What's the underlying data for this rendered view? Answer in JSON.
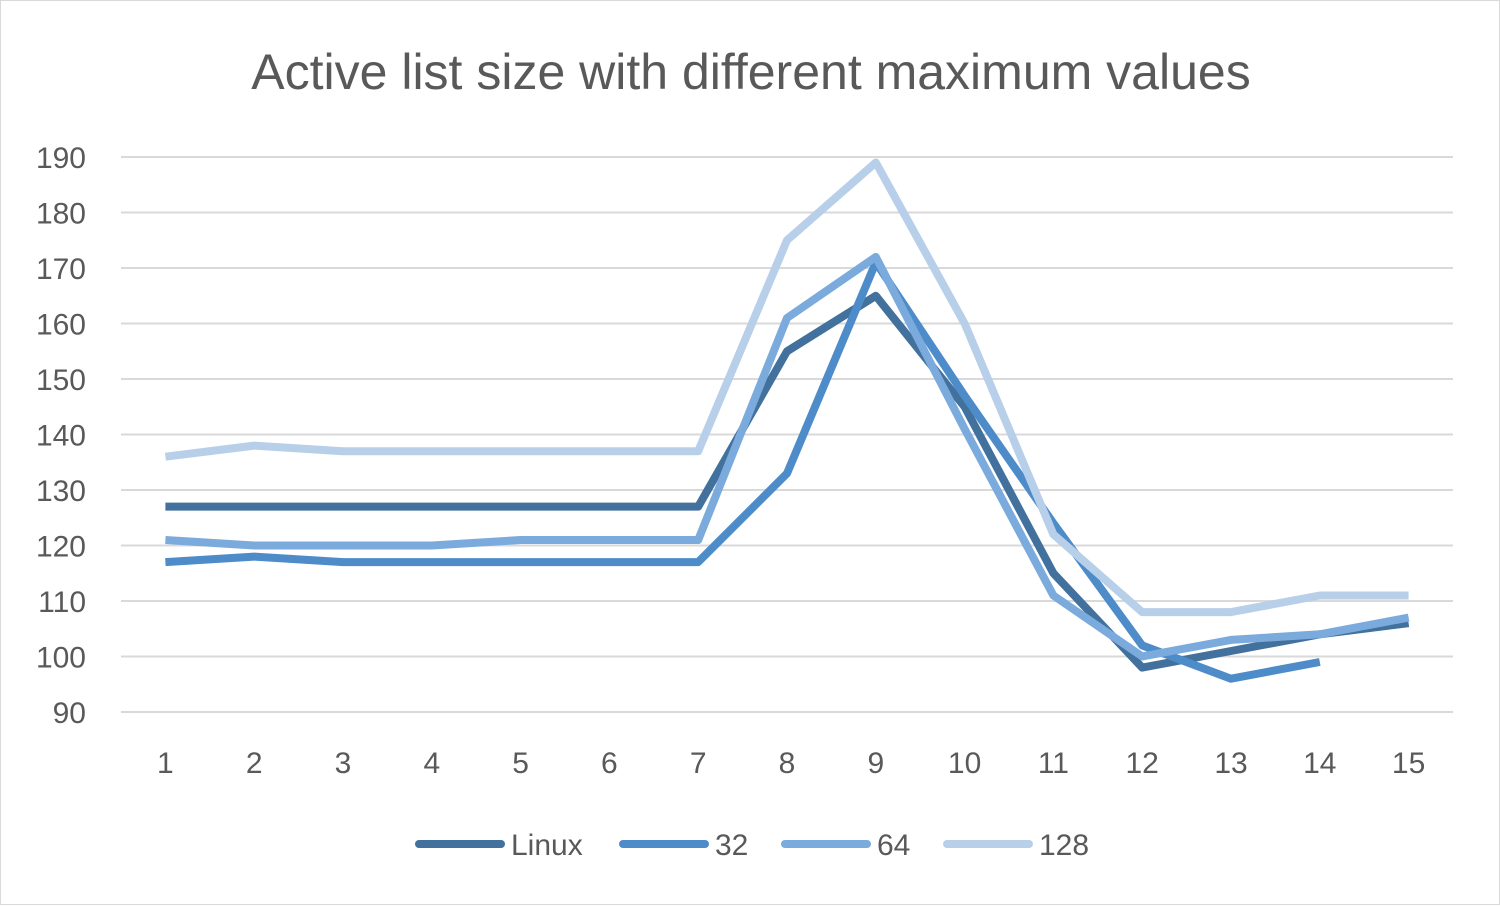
{
  "chart_data": {
    "type": "line",
    "title": "Active list size with different maximum values",
    "xlabel": "",
    "ylabel": "",
    "categories": [
      "1",
      "2",
      "3",
      "4",
      "5",
      "6",
      "7",
      "8",
      "9",
      "10",
      "11",
      "12",
      "13",
      "14",
      "15"
    ],
    "ylim": [
      90,
      190
    ],
    "yticks": [
      "90",
      "100",
      "110",
      "120",
      "130",
      "140",
      "150",
      "160",
      "170",
      "180",
      "190"
    ],
    "grid": true,
    "legend_position": "bottom",
    "series": [
      {
        "name": "Linux",
        "color": "#41719c",
        "values": [
          127,
          127,
          127,
          127,
          127,
          127,
          127,
          155,
          165,
          145,
          115,
          98,
          101,
          104,
          106
        ]
      },
      {
        "name": "32",
        "color": "#4d8cc8",
        "values": [
          117,
          118,
          117,
          117,
          117,
          117,
          117,
          133,
          171,
          147,
          124,
          102,
          96,
          99,
          null
        ]
      },
      {
        "name": "64",
        "color": "#7aabdc",
        "values": [
          121,
          120,
          120,
          120,
          121,
          121,
          121,
          161,
          172,
          141,
          111,
          100,
          103,
          104,
          107
        ]
      },
      {
        "name": "128",
        "color": "#b8cfea",
        "values": [
          136,
          138,
          137,
          137,
          137,
          137,
          137,
          175,
          189,
          160,
          122,
          108,
          108,
          111,
          111
        ]
      }
    ]
  }
}
